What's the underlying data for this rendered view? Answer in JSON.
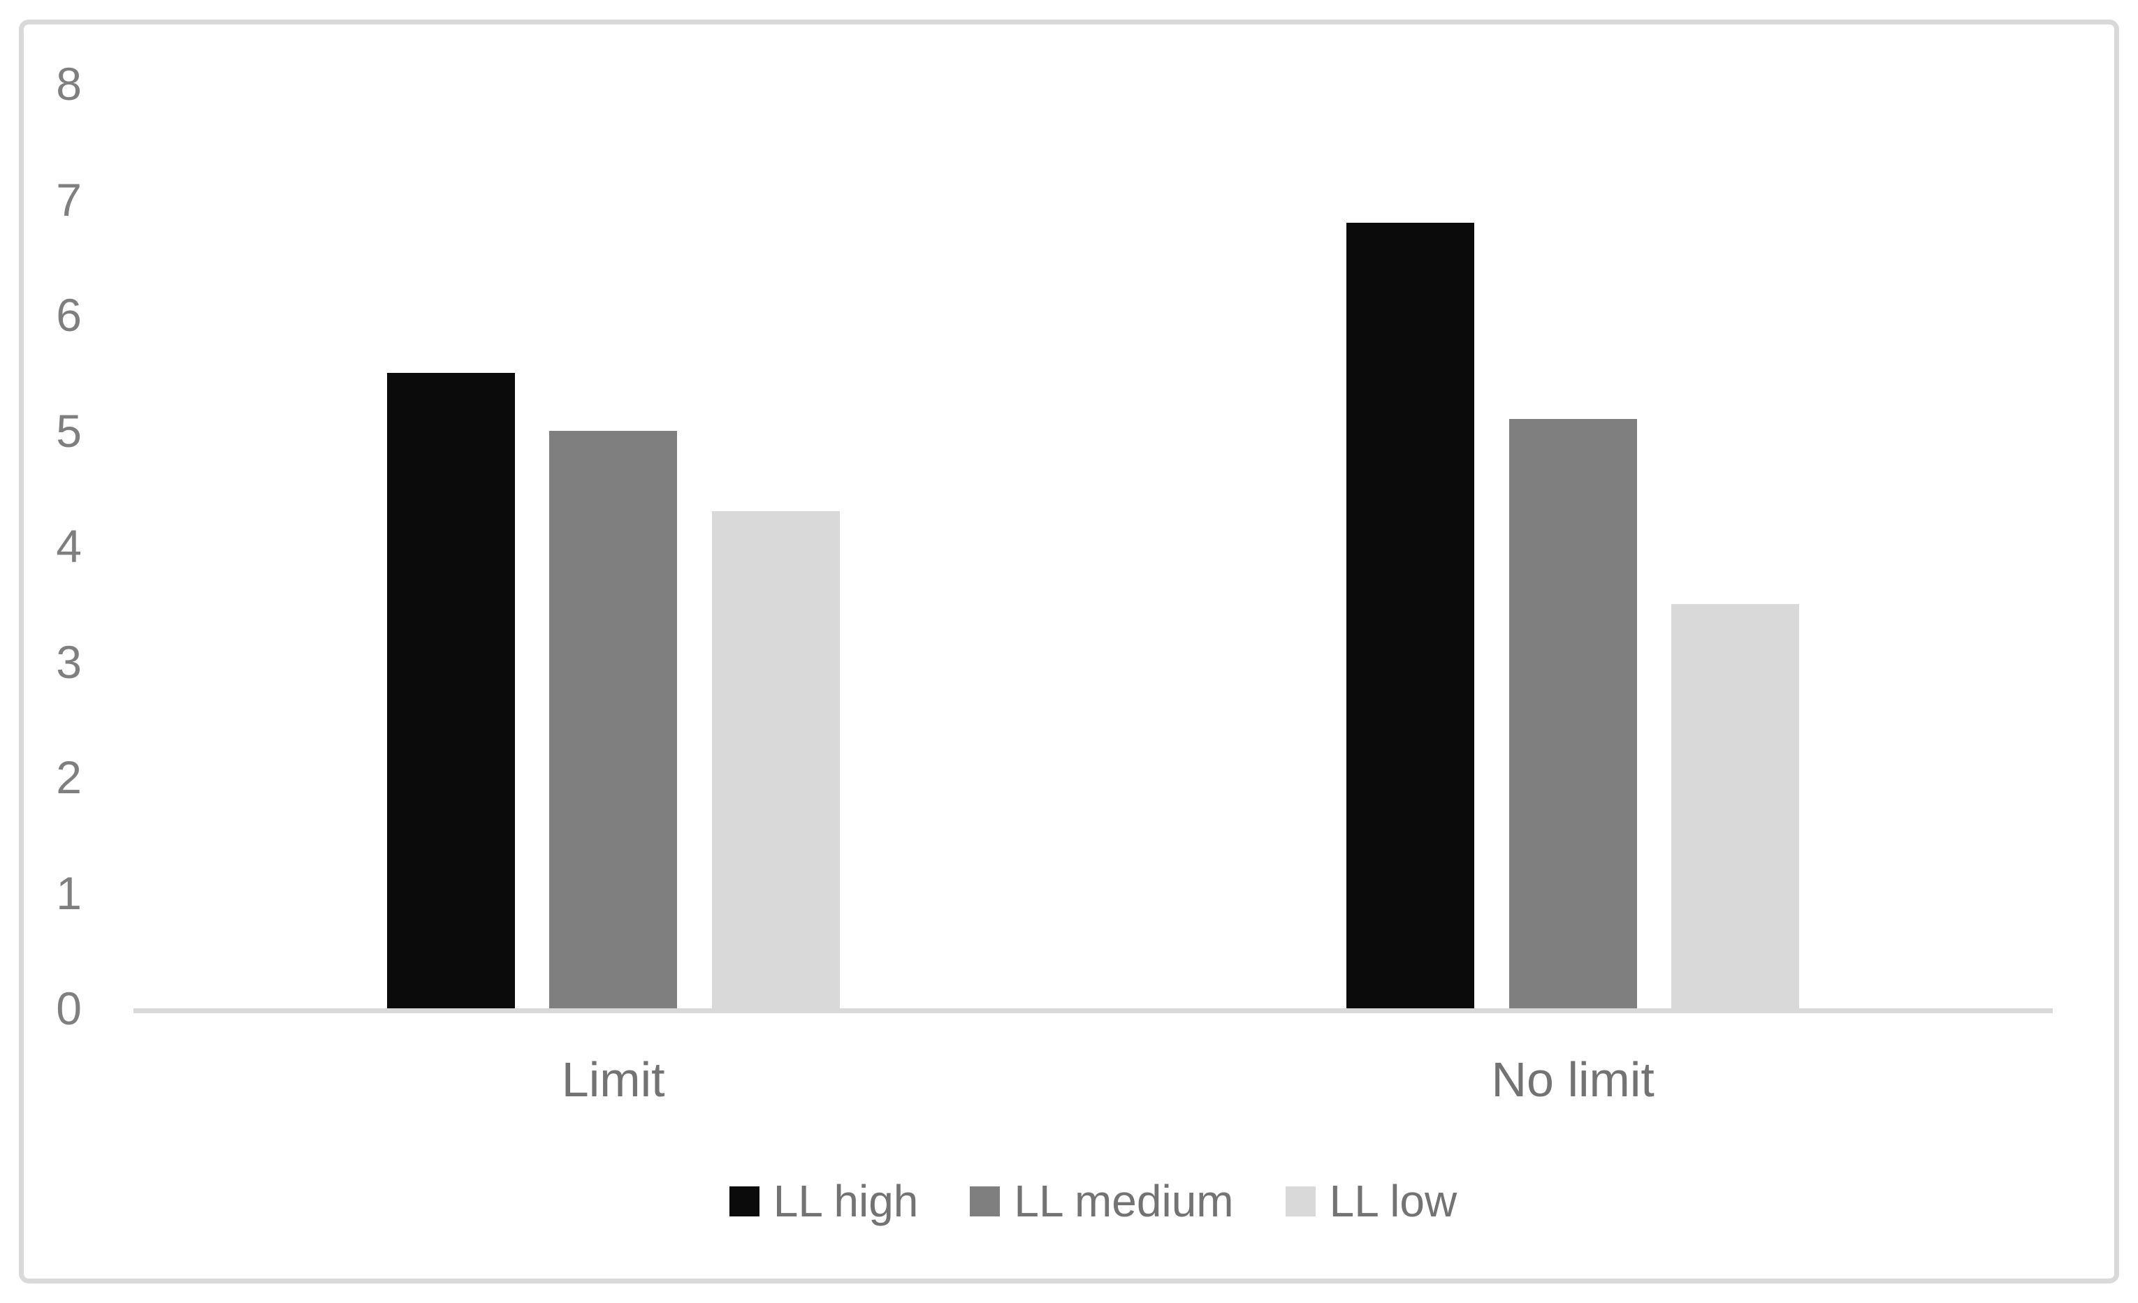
{
  "page": {
    "background_color": "#ffffff",
    "frame_border_color": "#d9d9d9"
  },
  "chart_data": {
    "type": "bar",
    "title": "",
    "xlabel": "",
    "ylabel": "",
    "categories": [
      "Limit",
      "No limit"
    ],
    "series": [
      {
        "name": "LL high",
        "color": "#0b0b0b",
        "values": [
          5.5,
          6.8
        ]
      },
      {
        "name": "LL medium",
        "color": "#7f7f7f",
        "values": [
          5.0,
          5.1
        ]
      },
      {
        "name": "LL low",
        "color": "#d9d9d9",
        "values": [
          4.3,
          3.5
        ]
      }
    ],
    "yticks": [
      0,
      1,
      2,
      3,
      4,
      5,
      6,
      7,
      8
    ],
    "ylim": [
      0,
      8
    ],
    "grid": false,
    "legend_position": "bottom",
    "colors": {
      "axis_line": "#d9d9d9",
      "tick_text": "#7f7f7f",
      "category_text": "#737373",
      "legend_text": "#737373"
    }
  }
}
